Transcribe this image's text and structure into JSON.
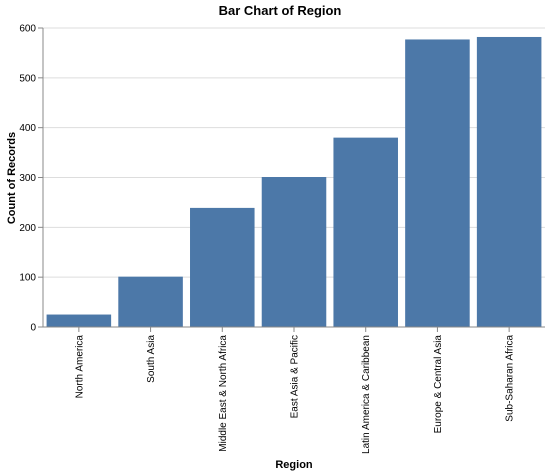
{
  "chart_data": {
    "type": "bar",
    "title": "Bar Chart of Region",
    "xlabel": "Region",
    "ylabel": "Count of Records",
    "categories": [
      "North America",
      "South Asia",
      "Middle East & North Africa",
      "East Asia & Pacific",
      "Latin America & Caribbean",
      "Europe & Central Asia",
      "Sub-Saharan Africa"
    ],
    "values": [
      25,
      101,
      239,
      301,
      380,
      577,
      582
    ],
    "ylim": [
      0,
      600
    ],
    "yticks": [
      0,
      100,
      200,
      300,
      400,
      500,
      600
    ],
    "grid": true,
    "bar_color": "#4c78a8"
  }
}
